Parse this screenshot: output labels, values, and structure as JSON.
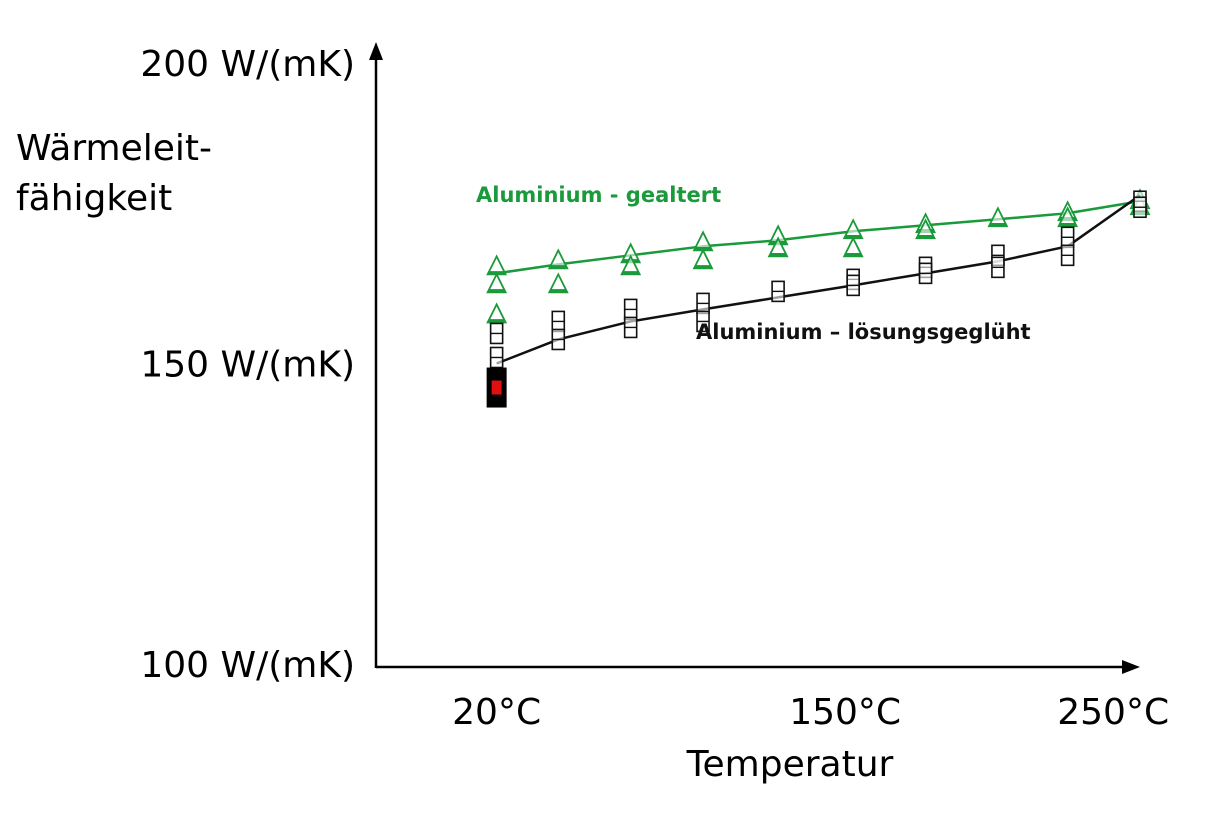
{
  "chart_data": {
    "type": "line",
    "title": "",
    "xlabel": "Temperatur",
    "ylabel_lines": [
      "Wärmeleit-",
      "fähigkeit"
    ],
    "x_tick_labels": [
      {
        "x": 20,
        "label": "20°C"
      },
      {
        "x": 150,
        "label": "150°C"
      },
      {
        "x": 250,
        "label": "250°C"
      }
    ],
    "y_tick_labels": [
      {
        "y": 100,
        "label": "100 W/(mK)"
      },
      {
        "y": 150,
        "label": "150 W/(mK)"
      },
      {
        "y": 200,
        "label": "200 W/(mK)"
      }
    ],
    "xlim": [
      -25,
      260
    ],
    "ylim": [
      100,
      200
    ],
    "grid": false,
    "series": [
      {
        "name": "Aluminium - gealtert",
        "color": "#1a9a3a",
        "marker": "triangle",
        "x": [
          20,
          43,
          70,
          97,
          125,
          153,
          180,
          207,
          233,
          260
        ],
        "y": [
          165,
          166.5,
          168,
          169.5,
          170.5,
          172,
          173,
          174,
          175,
          177
        ],
        "measurements": [
          {
            "x": 20,
            "y": [
              166,
              163,
              158
            ]
          },
          {
            "x": 43,
            "y": [
              167,
              163
            ]
          },
          {
            "x": 70,
            "y": [
              168,
              166
            ]
          },
          {
            "x": 97,
            "y": [
              170,
              167
            ]
          },
          {
            "x": 125,
            "y": [
              171,
              169
            ]
          },
          {
            "x": 153,
            "y": [
              172,
              169
            ]
          },
          {
            "x": 180,
            "y": [
              173,
              172
            ]
          },
          {
            "x": 207,
            "y": [
              174
            ]
          },
          {
            "x": 233,
            "y": [
              175,
              174
            ]
          },
          {
            "x": 260,
            "y": [
              177,
              176
            ]
          }
        ]
      },
      {
        "name": "Aluminium – lösungsgeglüht",
        "color": "#111111",
        "marker": "square",
        "x": [
          20,
          43,
          70,
          97,
          125,
          153,
          180,
          207,
          233,
          260
        ],
        "y": [
          150,
          154,
          157,
          159,
          161,
          163,
          165,
          167,
          169.5,
          178
        ],
        "measurements": [
          {
            "x": 20,
            "y": [
              155,
              151
            ]
          },
          {
            "x": 43,
            "y": [
              157,
              154
            ]
          },
          {
            "x": 70,
            "y": [
              159,
              156
            ]
          },
          {
            "x": 97,
            "y": [
              160,
              157
            ]
          },
          {
            "x": 125,
            "y": [
              162
            ]
          },
          {
            "x": 153,
            "y": [
              164,
              163
            ]
          },
          {
            "x": 180,
            "y": [
              166,
              165
            ]
          },
          {
            "x": 207,
            "y": [
              168,
              166
            ]
          },
          {
            "x": 233,
            "y": [
              171,
              168
            ]
          },
          {
            "x": 260,
            "y": [
              177,
              176
            ]
          }
        ]
      }
    ],
    "highlight_point": {
      "x": 20,
      "y": 146,
      "color": "#e01010"
    }
  }
}
